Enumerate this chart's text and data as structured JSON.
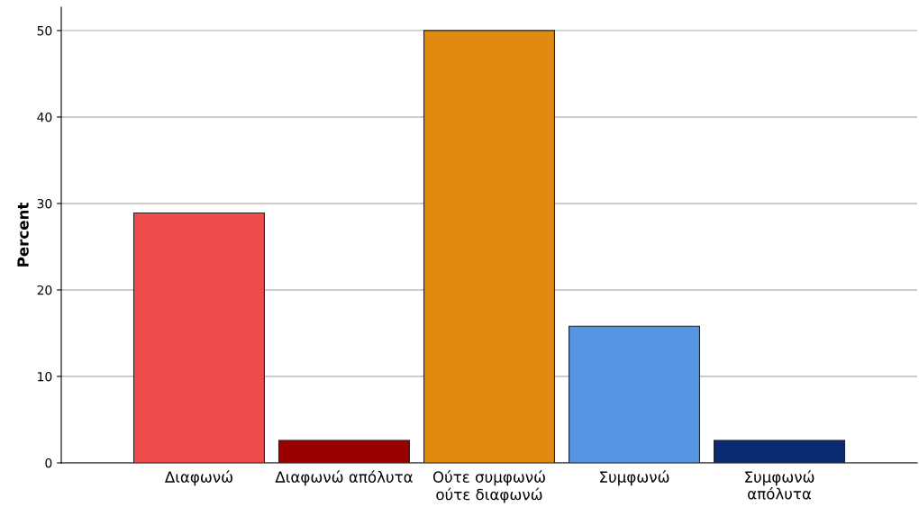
{
  "chart_data": {
    "type": "bar",
    "ylabel": "Percent",
    "categories": [
      "Διαφωνώ",
      "Διαφωνώ απόλυτα",
      "Ούτε συμφωνώ\nούτε διαφωνώ",
      "Συμφωνώ",
      "Συμφωνώ\nαπόλυτα"
    ],
    "values": [
      28.9,
      2.6,
      50.0,
      15.8,
      2.6
    ],
    "colors": [
      "#ee4b4b",
      "#990000",
      "#e08a10",
      "#5596e3",
      "#0a2a72"
    ],
    "ylim": [
      0,
      52.7
    ],
    "yticks": [
      0,
      10,
      20,
      30,
      40,
      50
    ],
    "grid": "y",
    "legend": false
  }
}
